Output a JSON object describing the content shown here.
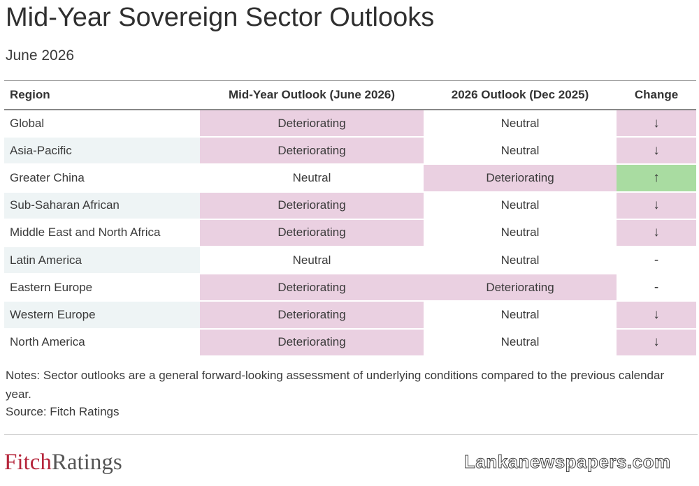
{
  "header": {
    "title": "Mid-Year Sovereign Sector Outlooks",
    "subtitle": "June 2026"
  },
  "table": {
    "columns": [
      "Region",
      "Mid-Year Outlook (June 2026)",
      "2026 Outlook (Dec 2025)",
      "Change"
    ],
    "rows": [
      [
        "Global",
        "Deteriorating",
        "Neutral",
        "↓"
      ],
      [
        "Asia-Pacific",
        "Deteriorating",
        "Neutral",
        "↓"
      ],
      [
        "Greater China",
        "Neutral",
        "Deteriorating",
        "↑"
      ],
      [
        "Sub-Saharan African",
        "Deteriorating",
        "Neutral",
        "↓"
      ],
      [
        "Middle East and North Africa",
        "Deteriorating",
        "Neutral",
        "↓"
      ],
      [
        "Latin America",
        "Neutral",
        "Neutral",
        "-"
      ],
      [
        "Eastern Europe",
        "Deteriorating",
        "Deteriorating",
        "-"
      ],
      [
        "Western Europe",
        "Deteriorating",
        "Neutral",
        "↓"
      ],
      [
        "North America",
        "Deteriorating",
        "Neutral",
        "↓"
      ]
    ]
  },
  "notes": "Notes: Sector outlooks are a general forward-looking assessment of underlying conditions compared to the previous calendar year.",
  "source": "Source: Fitch Ratings",
  "logo": {
    "part1": "Fitch",
    "part2": "Ratings"
  },
  "watermark": "Lankanewspapers.com"
}
